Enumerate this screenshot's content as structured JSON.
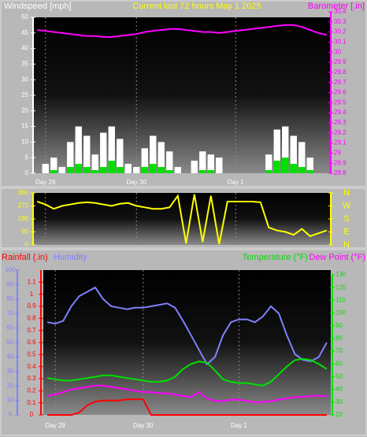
{
  "chart_data": [
    {
      "type": "bar",
      "title": "Current last 72 hours May 1 2025",
      "ylabel": "Windspeed [mph]",
      "y2label": "Barometer [.in]",
      "categories": [
        null,
        "Day 29",
        null,
        null,
        null,
        null,
        null,
        null,
        null,
        null,
        null,
        null,
        "Day 30",
        null,
        null,
        null,
        null,
        null,
        null,
        null,
        null,
        null,
        null,
        null,
        "Day 1",
        null,
        null,
        null,
        null,
        null,
        null,
        null,
        null,
        null,
        null,
        null
      ],
      "ylim": [
        0,
        50
      ],
      "yticks": [
        0,
        5,
        10,
        15,
        20,
        25,
        30,
        35,
        40,
        45,
        50
      ],
      "y2lim": [
        28.8,
        30.4
      ],
      "y2ticks": [
        28.8,
        28.9,
        29,
        29.1,
        29.2,
        29.3,
        29.4,
        29.5,
        29.6,
        29.7,
        29.8,
        29.9,
        30,
        30.1,
        30.2,
        30.3,
        30.4
      ],
      "series": [
        {
          "type": "bar",
          "color": "#ffffff",
          "values": [
            0,
            3,
            5,
            2,
            10,
            15,
            12,
            6,
            13,
            15,
            11,
            3,
            2,
            8,
            12,
            10,
            7,
            2,
            0,
            4,
            7,
            6,
            5,
            0,
            0,
            0,
            0,
            0,
            6,
            14,
            15,
            12,
            10,
            5,
            0,
            0
          ]
        },
        {
          "type": "bar",
          "color": "#00e000",
          "values": [
            0,
            0,
            1,
            0,
            2,
            3,
            2,
            1,
            2,
            4,
            2,
            0,
            0,
            2,
            3,
            2,
            1,
            0,
            0,
            0,
            1,
            1,
            0,
            0,
            0,
            0,
            0,
            0,
            1,
            4,
            5,
            3,
            2,
            1,
            0,
            0
          ]
        },
        {
          "type": "line",
          "axis": "y2",
          "color": "#ff00ff",
          "values": [
            30.22,
            30.21,
            30.2,
            30.19,
            30.18,
            30.17,
            30.16,
            30.16,
            30.15,
            30.15,
            30.16,
            30.17,
            30.18,
            30.2,
            30.21,
            30.22,
            30.23,
            30.23,
            30.22,
            30.21,
            30.2,
            30.2,
            30.19,
            30.2,
            30.21,
            30.22,
            30.23,
            30.24,
            30.25,
            30.26,
            30.27,
            30.27,
            30.25,
            30.22,
            30.19,
            30.17
          ]
        }
      ]
    },
    {
      "type": "line",
      "categories": [
        null,
        "Day 29",
        null,
        null,
        null,
        null,
        null,
        null,
        null,
        null,
        null,
        null,
        "Day 30",
        null,
        null,
        null,
        null,
        null,
        null,
        null,
        null,
        null,
        null,
        null,
        "Day 1",
        null,
        null,
        null,
        null,
        null,
        null,
        null,
        null,
        null,
        null,
        null
      ],
      "ylim": [
        0,
        360
      ],
      "yticks": [
        0,
        90,
        180,
        270,
        360
      ],
      "y2lim": [
        0,
        360
      ],
      "y2ticks": [
        {
          "value": 0,
          "label": "N"
        },
        {
          "value": 90,
          "label": "E"
        },
        {
          "value": 180,
          "label": "S"
        },
        {
          "value": 270,
          "label": "W"
        },
        {
          "value": 360,
          "label": "N"
        }
      ],
      "series": [
        {
          "type": "line",
          "color": "#ffff00",
          "values": [
            300,
            280,
            250,
            270,
            280,
            290,
            295,
            290,
            280,
            270,
            285,
            290,
            270,
            260,
            250,
            250,
            260,
            340,
            10,
            350,
            20,
            340,
            5,
            300,
            300,
            300,
            300,
            295,
            120,
            100,
            90,
            70,
            110,
            60,
            80,
            100
          ]
        }
      ]
    },
    {
      "type": "line",
      "categories": [
        null,
        "Day 29",
        null,
        null,
        null,
        null,
        null,
        null,
        null,
        null,
        null,
        null,
        "Day 30",
        null,
        null,
        null,
        null,
        null,
        null,
        null,
        null,
        null,
        null,
        null,
        "Day 1",
        null,
        null,
        null,
        null,
        null,
        null,
        null,
        null,
        null,
        null,
        null
      ],
      "ylim": [
        0,
        100
      ],
      "yticks": [
        0,
        10,
        20,
        30,
        40,
        50,
        60,
        70,
        80,
        90,
        100
      ],
      "y2lim": [
        20,
        130
      ],
      "y2ticks": [
        20,
        30,
        40,
        50,
        60,
        70,
        80,
        90,
        100,
        110,
        120,
        130
      ],
      "y3lim": [
        0,
        1.2
      ],
      "y3ticks": [
        0,
        0.1,
        0.2,
        0.3,
        0.4,
        0.5,
        0.6,
        0.7,
        0.8,
        0.9,
        1,
        1.1
      ],
      "series": [
        {
          "name": "Humidity",
          "type": "line",
          "color": "#8080ff",
          "values": [
            64,
            63,
            65,
            75,
            82,
            85,
            88,
            80,
            75,
            74,
            73,
            74,
            74,
            75,
            76,
            77,
            74,
            65,
            55,
            45,
            35,
            40,
            55,
            64,
            66,
            66,
            64,
            68,
            75,
            70,
            55,
            42,
            38,
            37,
            40,
            50
          ]
        },
        {
          "name": "Temperature (°F)",
          "type": "line",
          "axis": "y2",
          "color": "#00e000",
          "values": [
            49,
            48,
            47,
            47,
            48,
            49,
            50,
            51,
            51,
            50,
            49,
            48,
            47,
            46,
            46,
            47,
            50,
            56,
            60,
            62,
            61,
            55,
            48,
            46,
            45,
            45,
            44,
            43,
            46,
            52,
            58,
            63,
            64,
            63,
            60,
            56
          ]
        },
        {
          "name": "Dew Point (°F)",
          "type": "line",
          "axis": "y2",
          "color": "#ff00ff",
          "values": [
            35,
            36,
            38,
            40,
            41,
            42,
            43,
            43,
            42,
            41,
            40,
            39,
            38,
            38,
            37,
            37,
            36,
            35,
            34,
            38,
            33,
            31,
            31,
            32,
            32,
            31,
            30,
            30,
            31,
            32,
            33,
            34,
            34,
            35,
            35,
            35
          ]
        },
        {
          "name": "Rainfall (.in)",
          "type": "line",
          "axis": "y3",
          "color": "#ff0000",
          "values": [
            0,
            0,
            0,
            0,
            0.02,
            0.08,
            0.11,
            0.12,
            0.12,
            0.12,
            0.13,
            0.13,
            0.13,
            0,
            0,
            0,
            0,
            0,
            0,
            0,
            0,
            0,
            0,
            0,
            0,
            0,
            0,
            0,
            0,
            0,
            0,
            0,
            0,
            0,
            0,
            0
          ]
        }
      ]
    }
  ]
}
